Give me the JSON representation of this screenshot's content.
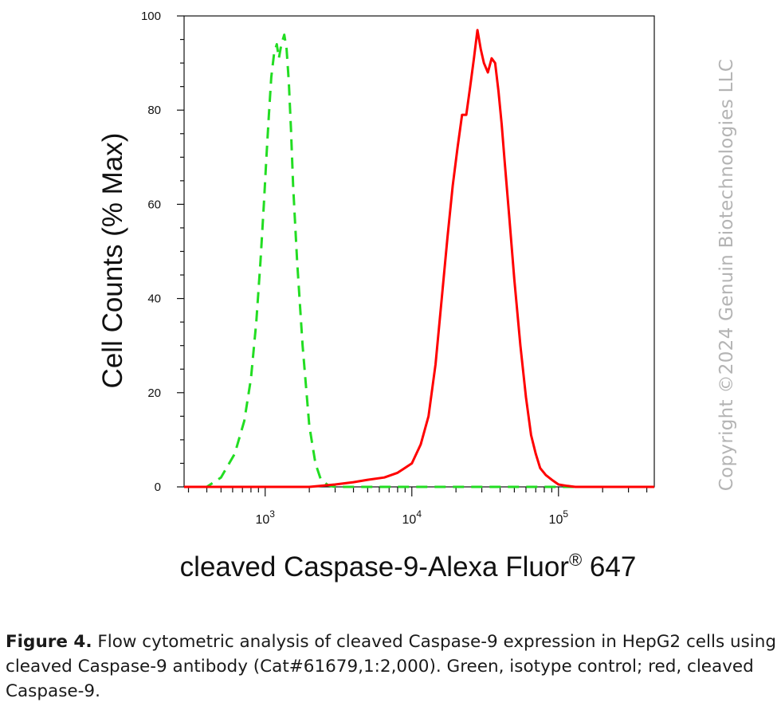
{
  "chart_data": {
    "type": "line",
    "xlabel": "cleaved Caspase-9-Alexa Fluor",
    "xlabel_superscript": "®",
    "xlabel_suffix": " 647",
    "ylabel": "Cell Counts (% Max)",
    "x_scale": "log",
    "xlim": [
      280,
      450000
    ],
    "ylim": [
      0,
      100
    ],
    "x_ticks": [
      {
        "value": 1000,
        "base": "10",
        "exp": "3"
      },
      {
        "value": 10000,
        "base": "10",
        "exp": "4"
      },
      {
        "value": 100000,
        "base": "10",
        "exp": "5"
      }
    ],
    "y_ticks": [
      0,
      20,
      40,
      60,
      80,
      100
    ],
    "grid": false,
    "series": [
      {
        "color": "#22dd22",
        "dash": "dashed",
        "x": [
          280,
          400,
          500,
          620,
          720,
          800,
          870,
          930,
          980,
          1020,
          1060,
          1100,
          1150,
          1200,
          1240,
          1290,
          1350,
          1400,
          1450,
          1500,
          1550,
          1650,
          1800,
          2000,
          2200,
          2400,
          2700,
          3000,
          4000,
          10000,
          100000,
          450000
        ],
        "y": [
          0,
          0,
          2,
          7,
          14,
          23,
          35,
          48,
          60,
          70,
          79,
          87,
          92,
          94,
          91,
          94,
          96,
          93,
          86,
          76,
          64,
          48,
          30,
          13,
          5,
          1.5,
          0.3,
          0,
          0,
          0,
          0,
          0
        ]
      },
      {
        "color": "#ff0000",
        "dash": "solid",
        "x": [
          280,
          2000,
          3000,
          4000,
          5000,
          6500,
          8000,
          10000,
          11500,
          13000,
          14500,
          16000,
          17500,
          19000,
          20500,
          22000,
          23500,
          25000,
          26500,
          28000,
          29500,
          31000,
          33000,
          35000,
          37000,
          39000,
          41000,
          43000,
          46000,
          50000,
          55000,
          60000,
          65000,
          70000,
          75000,
          82000,
          90000,
          100000,
          115000,
          130000,
          160000,
          450000
        ],
        "y": [
          0,
          0,
          0.5,
          1,
          1.5,
          2,
          3,
          5,
          9,
          15,
          26,
          40,
          53,
          64,
          72,
          79,
          79,
          85,
          91,
          97,
          93,
          90,
          88,
          91,
          90,
          84,
          77,
          69,
          58,
          44,
          30,
          19,
          11,
          7,
          4,
          2.5,
          1.5,
          0.5,
          0.2,
          0,
          0,
          0
        ]
      }
    ]
  },
  "watermark": "Copyright ©2024 Genuin Biotechnologies LLC",
  "caption": {
    "label": "Figure 4.",
    "text": " Flow cytometric analysis of cleaved Caspase-9 expression in HepG2 cells using cleaved Caspase-9 antibody (Cat#61679,1:2,000). Green, isotype control; red, cleaved Caspase-9."
  }
}
